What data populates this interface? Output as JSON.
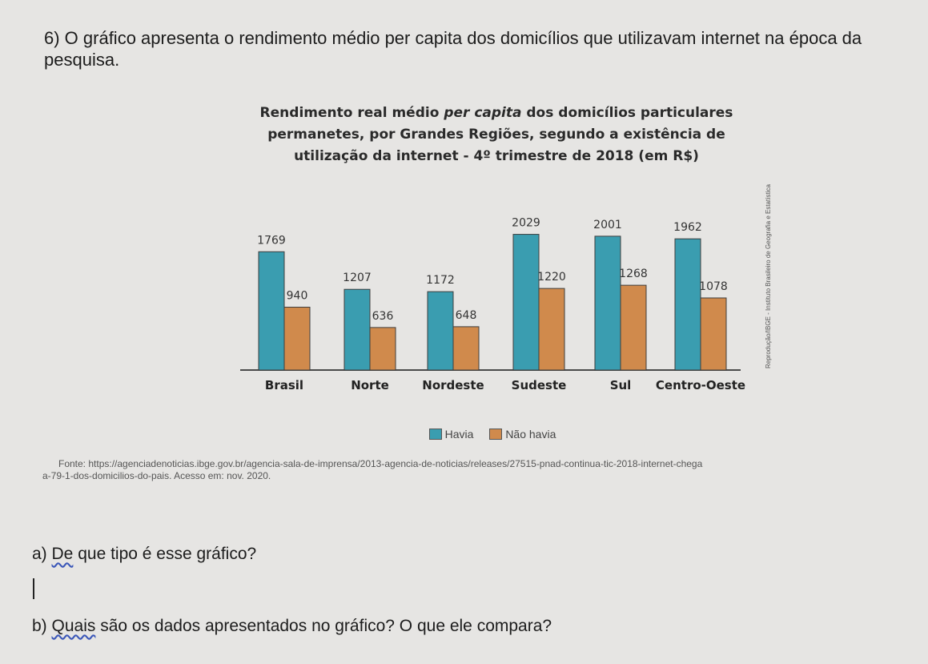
{
  "question": {
    "intro": "6) O gráfico apresenta o rendimento médio per capita dos domicílios que utilizavam internet na época da pesquisa."
  },
  "chart_title": {
    "part1": "Rendimento real médio ",
    "italic": "per capita",
    "part2": " dos domicílios particulares permanetes, por Grandes Regiões, segundo a existência de utilização da internet - 4º trimestre de 2018 (em R$)"
  },
  "credit": "Reprodução/IBGE - Instituto Brasileiro de Geografia e Estatística",
  "source": {
    "line1": "Fonte: https://agenciadenoticias.ibge.gov.br/agencia-sala-de-imprensa/2013-agencia-de-noticias/releases/27515-pnad-continua-tic-2018-internet-chega",
    "line2": "a-79-1-dos-domicilios-do-pais. Acesso em: nov. 2020."
  },
  "questions": {
    "a_prefix": "a) ",
    "a_underlined": "De",
    "a_rest": " que tipo é esse gráfico?",
    "b_prefix": "b) ",
    "b_underlined": "Quais",
    "b_rest": " são os dados apresentados no gráfico? O que ele compara?"
  },
  "colors": {
    "havia": "#3a9db0",
    "nao_havia": "#d08a4c",
    "axis": "#4a4a4a"
  },
  "chart_data": {
    "type": "bar",
    "categories": [
      "Brasil",
      "Norte",
      "Nordeste",
      "Sudeste",
      "Sul",
      "Centro-Oeste"
    ],
    "series": [
      {
        "name": "Havia",
        "values": [
          1769,
          1207,
          1172,
          2029,
          2001,
          1962
        ]
      },
      {
        "name": "Não havia",
        "values": [
          940,
          636,
          648,
          1220,
          1268,
          1078
        ]
      }
    ],
    "ylim": [
      0,
      2100
    ],
    "legend_position": "bottom",
    "grid": false
  }
}
